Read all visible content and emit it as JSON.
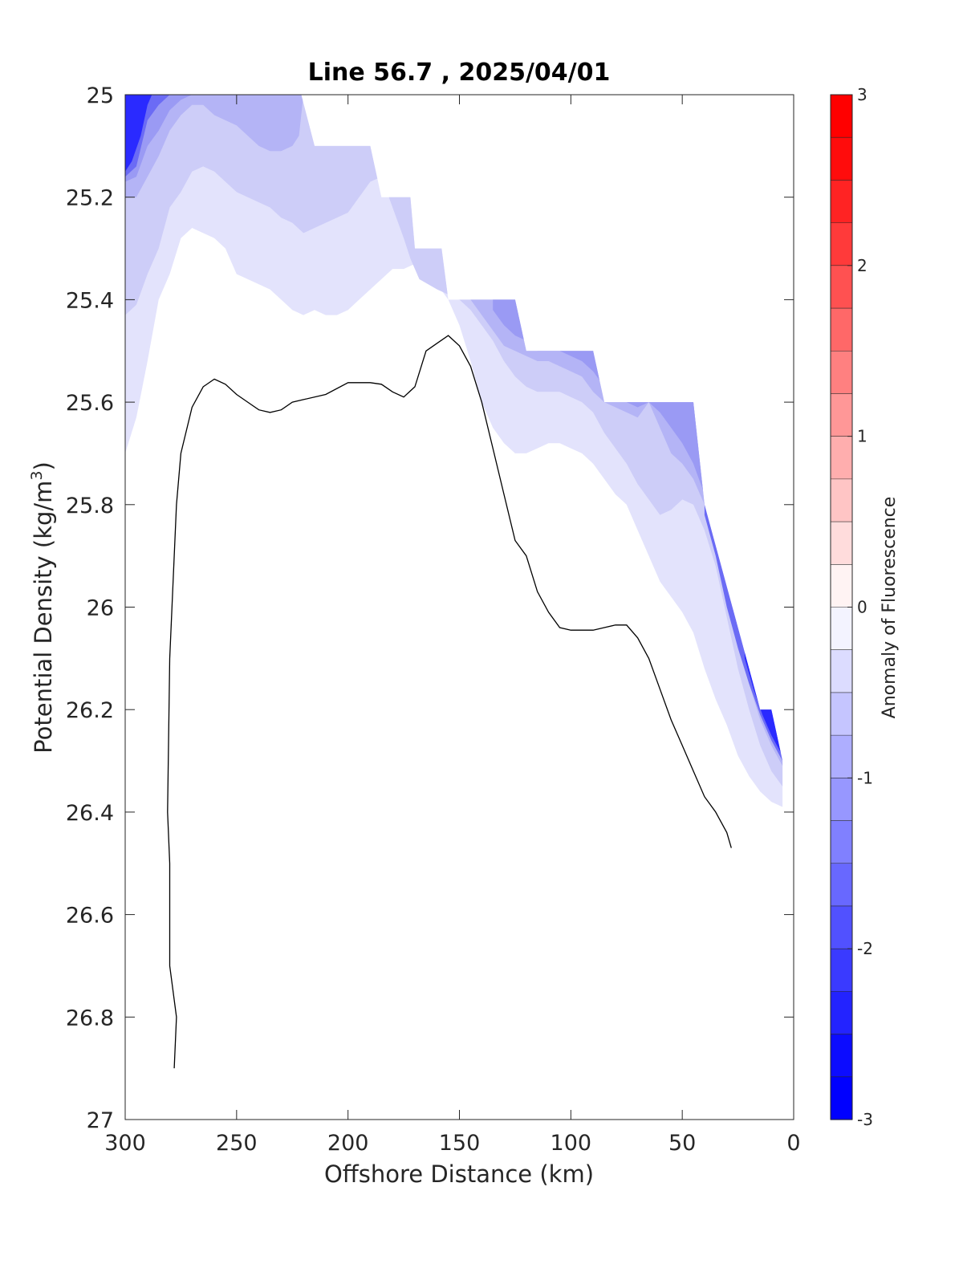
{
  "chart_data": {
    "type": "contour",
    "title": "Line 56.7 , 2025/04/01",
    "xlabel": "Offshore Distance (km)",
    "ylabel_main": "Potential Density (kg/m",
    "ylabel_sup": "3",
    "ylabel_close": ")",
    "xlim": [
      300,
      0
    ],
    "ylim": [
      25,
      27
    ],
    "x_reversed": true,
    "y_reversed": true,
    "grid": false,
    "x_ticks": [
      300,
      250,
      200,
      150,
      100,
      50,
      0
    ],
    "x_tick_labels": [
      "300",
      "250",
      "200",
      "150",
      "100",
      "50",
      "0"
    ],
    "y_ticks": [
      25,
      25.2,
      25.4,
      25.6,
      25.8,
      26,
      26.2,
      26.4,
      26.6,
      26.8,
      27
    ],
    "y_tick_labels": [
      "25",
      "25.2",
      "25.4",
      "25.6",
      "25.8",
      "26",
      "26.2",
      "26.4",
      "26.6",
      "26.8",
      "27"
    ],
    "colorbar": {
      "label": "Anomaly of Fluorescence",
      "min": -3,
      "max": 3,
      "ticks": [
        3,
        2,
        1,
        0,
        -1,
        -2,
        -3
      ],
      "tick_labels": [
        "3",
        "2",
        "1",
        "0",
        "-1",
        "-2",
        "-3"
      ],
      "levels": 24,
      "positive_color": "#ff0000",
      "negative_color": "#0000ff",
      "neutral_color": "#ffffff"
    },
    "contour_levels": [
      {
        "level": -0.25,
        "color": "#e3e3fc",
        "boundary": [
          [
            300,
            25.7
          ],
          [
            295,
            25.63
          ],
          [
            290,
            25.52
          ],
          [
            285,
            25.4
          ],
          [
            280,
            25.35
          ],
          [
            275,
            25.28
          ],
          [
            270,
            25.26
          ],
          [
            265,
            25.27
          ],
          [
            260,
            25.28
          ],
          [
            255,
            25.3
          ],
          [
            250,
            25.35
          ],
          [
            245,
            25.36
          ],
          [
            240,
            25.37
          ],
          [
            235,
            25.38
          ],
          [
            230,
            25.4
          ],
          [
            225,
            25.42
          ],
          [
            220,
            25.43
          ],
          [
            215,
            25.42
          ],
          [
            210,
            25.43
          ],
          [
            205,
            25.43
          ],
          [
            200,
            25.42
          ],
          [
            195,
            25.4
          ],
          [
            190,
            25.38
          ],
          [
            185,
            25.36
          ],
          [
            180,
            25.34
          ],
          [
            175,
            25.34
          ],
          [
            170,
            25.33
          ],
          [
            160,
            25.37
          ],
          [
            155,
            25.4
          ],
          [
            150,
            25.45
          ],
          [
            145,
            25.52
          ],
          [
            140,
            25.6
          ],
          [
            135,
            25.65
          ],
          [
            130,
            25.68
          ],
          [
            125,
            25.7
          ],
          [
            120,
            25.7
          ],
          [
            115,
            25.69
          ],
          [
            110,
            25.68
          ],
          [
            105,
            25.68
          ],
          [
            100,
            25.69
          ],
          [
            95,
            25.7
          ],
          [
            90,
            25.72
          ],
          [
            85,
            25.75
          ],
          [
            80,
            25.78
          ],
          [
            75,
            25.8
          ],
          [
            70,
            25.85
          ],
          [
            65,
            25.9
          ],
          [
            60,
            25.95
          ],
          [
            55,
            25.98
          ],
          [
            50,
            26.01
          ],
          [
            45,
            26.05
          ],
          [
            40,
            26.12
          ],
          [
            35,
            26.18
          ],
          [
            30,
            26.23
          ],
          [
            25,
            26.29
          ],
          [
            20,
            26.33
          ],
          [
            15,
            26.36
          ],
          [
            10,
            26.38
          ],
          [
            5,
            26.39
          ]
        ]
      },
      {
        "level": -0.5,
        "color": "#cdcdf8",
        "boundary": [
          [
            300,
            25.43
          ],
          [
            295,
            25.41
          ],
          [
            290,
            25.35
          ],
          [
            285,
            25.3
          ],
          [
            280,
            25.22
          ],
          [
            275,
            25.19
          ],
          [
            270,
            25.15
          ],
          [
            265,
            25.14
          ],
          [
            260,
            25.15
          ],
          [
            255,
            25.17
          ],
          [
            250,
            25.19
          ],
          [
            245,
            25.2
          ],
          [
            240,
            25.21
          ],
          [
            235,
            25.22
          ],
          [
            230,
            25.24
          ],
          [
            225,
            25.25
          ],
          [
            220,
            25.27
          ],
          [
            215,
            25.26
          ],
          [
            210,
            25.25
          ],
          [
            205,
            25.24
          ],
          [
            200,
            25.23
          ],
          [
            195,
            25.2
          ],
          [
            190,
            25.17
          ],
          [
            185,
            25.16
          ],
          [
            175,
            25.28
          ],
          [
            172,
            25.32
          ],
          [
            168,
            25.36
          ],
          [
            160,
            25.38
          ],
          [
            150,
            25.4
          ],
          [
            145,
            25.42
          ],
          [
            140,
            25.45
          ],
          [
            135,
            25.48
          ],
          [
            130,
            25.52
          ],
          [
            125,
            25.55
          ],
          [
            120,
            25.57
          ],
          [
            115,
            25.58
          ],
          [
            110,
            25.58
          ],
          [
            105,
            25.58
          ],
          [
            100,
            25.59
          ],
          [
            95,
            25.6
          ],
          [
            90,
            25.62
          ],
          [
            85,
            25.66
          ],
          [
            80,
            25.69
          ],
          [
            75,
            25.72
          ],
          [
            70,
            25.76
          ],
          [
            65,
            25.79
          ],
          [
            60,
            25.82
          ],
          [
            55,
            25.81
          ],
          [
            50,
            25.79
          ],
          [
            45,
            25.8
          ],
          [
            40,
            25.85
          ],
          [
            35,
            25.92
          ],
          [
            30,
            26.02
          ],
          [
            25,
            26.12
          ],
          [
            20,
            26.2
          ],
          [
            15,
            26.27
          ],
          [
            10,
            26.32
          ],
          [
            5,
            26.35
          ]
        ]
      },
      {
        "level": -0.75,
        "color": "#b4b4f6",
        "boundary": [
          [
            300,
            25.2
          ],
          [
            295,
            25.2
          ],
          [
            290,
            25.16
          ],
          [
            285,
            25.12
          ],
          [
            280,
            25.07
          ],
          [
            275,
            25.04
          ],
          [
            270,
            25.02
          ],
          [
            265,
            25.02
          ],
          [
            260,
            25.04
          ],
          [
            255,
            25.05
          ],
          [
            250,
            25.06
          ],
          [
            245,
            25.08
          ],
          [
            240,
            25.1
          ],
          [
            235,
            25.11
          ],
          [
            230,
            25.11
          ],
          [
            225,
            25.1
          ],
          [
            222,
            25.08
          ],
          [
            220,
            25.0
          ]
        ]
      },
      {
        "level": -0.75,
        "color": "#b4b4f6",
        "boundary": [
          [
            145,
            25.4
          ],
          [
            140,
            25.43
          ],
          [
            135,
            25.46
          ],
          [
            130,
            25.49
          ],
          [
            125,
            25.5
          ],
          [
            120,
            25.51
          ],
          [
            115,
            25.52
          ],
          [
            110,
            25.52
          ],
          [
            105,
            25.53
          ],
          [
            100,
            25.54
          ],
          [
            95,
            25.55
          ],
          [
            90,
            25.58
          ],
          [
            85,
            25.6
          ],
          [
            80,
            25.61
          ],
          [
            75,
            25.62
          ],
          [
            70,
            25.63
          ],
          [
            65,
            25.6
          ],
          [
            60,
            25.65
          ],
          [
            55,
            25.7
          ],
          [
            50,
            25.72
          ],
          [
            45,
            25.75
          ],
          [
            40,
            25.8
          ],
          [
            35,
            25.88
          ],
          [
            30,
            25.98
          ],
          [
            25,
            26.08
          ],
          [
            20,
            26.15
          ],
          [
            15,
            26.22
          ],
          [
            10,
            26.27
          ],
          [
            5,
            26.31
          ]
        ]
      },
      {
        "level": -1.0,
        "color": "#9a9af4",
        "boundary": [
          [
            300,
            25.17
          ],
          [
            295,
            25.16
          ],
          [
            290,
            25.1
          ],
          [
            285,
            25.07
          ],
          [
            280,
            25.03
          ],
          [
            275,
            25.01
          ],
          [
            270,
            25.0
          ]
        ]
      },
      {
        "level": -1.0,
        "color": "#9a9af4",
        "boundary": [
          [
            135,
            25.42
          ],
          [
            130,
            25.45
          ],
          [
            125,
            25.47
          ],
          [
            120,
            25.48
          ],
          [
            115,
            25.5
          ],
          [
            110,
            25.5
          ],
          [
            105,
            25.5
          ],
          [
            100,
            25.51
          ],
          [
            95,
            25.52
          ],
          [
            90,
            25.54
          ],
          [
            85,
            25.57
          ],
          [
            80,
            25.59
          ],
          [
            75,
            25.6
          ],
          [
            70,
            25.61
          ],
          [
            65,
            25.6
          ],
          [
            60,
            25.62
          ],
          [
            55,
            25.65
          ],
          [
            50,
            25.68
          ],
          [
            45,
            25.72
          ],
          [
            40,
            25.78
          ],
          [
            35,
            25.85
          ],
          [
            30,
            25.95
          ],
          [
            25,
            26.05
          ],
          [
            20,
            26.12
          ],
          [
            15,
            26.19
          ],
          [
            10,
            26.24
          ],
          [
            5,
            26.29
          ]
        ]
      },
      {
        "level": -1.5,
        "color": "#6b6bf5",
        "boundary": [
          [
            300,
            25.16
          ],
          [
            295,
            25.14
          ],
          [
            290,
            25.05
          ],
          [
            285,
            25.02
          ],
          [
            280,
            25.0
          ]
        ]
      },
      {
        "level": -1.5,
        "color": "#6b6bf5",
        "boundary": [
          [
            40,
            25.82
          ],
          [
            35,
            25.9
          ],
          [
            30,
            26.0
          ],
          [
            25,
            26.08
          ],
          [
            20,
            26.15
          ],
          [
            15,
            26.21
          ],
          [
            10,
            26.26
          ],
          [
            5,
            26.3
          ]
        ]
      },
      {
        "level": -2.5,
        "color": "#2a2aff",
        "boundary": [
          [
            300,
            25.15
          ],
          [
            297,
            25.13
          ],
          [
            293,
            25.08
          ],
          [
            290,
            25.02
          ],
          [
            288,
            25.0
          ]
        ]
      },
      {
        "level": -2.5,
        "color": "#2a2aff",
        "boundary": [
          [
            22,
            26.1
          ],
          [
            18,
            26.16
          ],
          [
            14,
            26.21
          ],
          [
            10,
            26.25
          ],
          [
            5,
            26.29
          ]
        ]
      }
    ],
    "data_limit": [
      [
        300,
        25.0
      ],
      [
        221,
        25.0
      ],
      [
        215,
        25.1
      ],
      [
        190,
        25.1
      ],
      [
        185,
        25.2
      ],
      [
        172,
        25.2
      ],
      [
        170,
        25.3
      ],
      [
        158,
        25.3
      ],
      [
        155,
        25.4
      ],
      [
        125,
        25.4
      ],
      [
        120,
        25.5
      ],
      [
        90,
        25.5
      ],
      [
        85,
        25.6
      ],
      [
        45,
        25.6
      ],
      [
        40,
        25.8
      ],
      [
        15,
        26.2
      ],
      [
        10,
        26.2
      ],
      [
        5,
        26.3
      ],
      [
        0,
        26.3
      ],
      [
        0,
        27
      ]
    ],
    "black_line": [
      [
        278,
        26.9
      ],
      [
        277,
        26.8
      ],
      [
        280,
        26.7
      ],
      [
        280,
        26.5
      ],
      [
        281,
        26.4
      ],
      [
        280,
        26.1
      ],
      [
        278,
        25.9
      ],
      [
        277,
        25.8
      ],
      [
        275,
        25.7
      ],
      [
        270,
        25.61
      ],
      [
        265,
        25.57
      ],
      [
        260,
        25.555
      ],
      [
        255,
        25.565
      ],
      [
        250,
        25.585
      ],
      [
        245,
        25.6
      ],
      [
        240,
        25.615
      ],
      [
        235,
        25.62
      ],
      [
        230,
        25.615
      ],
      [
        225,
        25.6
      ],
      [
        220,
        25.595
      ],
      [
        210,
        25.585
      ],
      [
        200,
        25.562
      ],
      [
        190,
        25.562
      ],
      [
        185,
        25.565
      ],
      [
        180,
        25.58
      ],
      [
        175,
        25.59
      ],
      [
        170,
        25.57
      ],
      [
        165,
        25.5
      ],
      [
        160,
        25.485
      ],
      [
        155,
        25.47
      ],
      [
        150,
        25.49
      ],
      [
        145,
        25.53
      ],
      [
        140,
        25.6
      ],
      [
        135,
        25.69
      ],
      [
        130,
        25.78
      ],
      [
        125,
        25.87
      ],
      [
        120,
        25.9
      ],
      [
        115,
        25.97
      ],
      [
        110,
        26.01
      ],
      [
        105,
        26.04
      ],
      [
        100,
        26.045
      ],
      [
        95,
        26.045
      ],
      [
        90,
        26.045
      ],
      [
        85,
        26.04
      ],
      [
        80,
        26.035
      ],
      [
        75,
        26.035
      ],
      [
        70,
        26.06
      ],
      [
        65,
        26.1
      ],
      [
        60,
        26.16
      ],
      [
        55,
        26.22
      ],
      [
        50,
        26.27
      ],
      [
        45,
        26.32
      ],
      [
        40,
        26.37
      ],
      [
        35,
        26.4
      ],
      [
        30,
        26.44
      ],
      [
        28,
        26.47
      ]
    ]
  }
}
